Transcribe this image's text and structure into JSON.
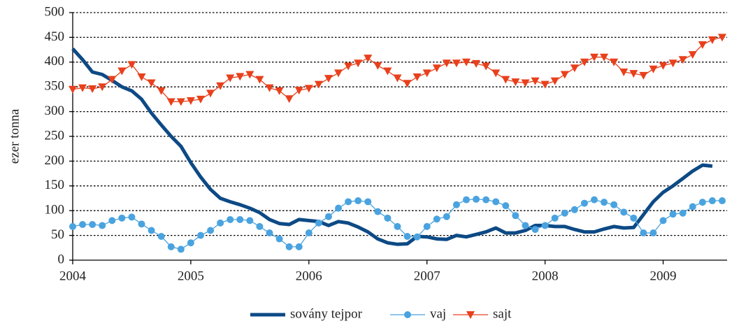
{
  "chart_data": {
    "type": "line",
    "y_label": "ezer tonna",
    "categories": [
      "2004",
      null,
      null,
      null,
      null,
      null,
      null,
      null,
      null,
      null,
      null,
      null,
      "2005",
      null,
      null,
      null,
      null,
      null,
      null,
      null,
      null,
      null,
      null,
      null,
      "2006",
      null,
      null,
      null,
      null,
      null,
      null,
      null,
      null,
      null,
      null,
      null,
      "2007",
      null,
      null,
      null,
      null,
      null,
      null,
      null,
      null,
      null,
      null,
      null,
      "2008",
      null,
      null,
      null,
      null,
      null,
      null,
      null,
      null,
      null,
      null,
      null,
      "2009",
      null,
      null,
      null,
      null,
      null,
      null
    ],
    "series": [
      {
        "name": "sovány tejpor",
        "color": "#0d4a85",
        "marker": "none",
        "values": [
          427,
          405,
          380,
          375,
          363,
          350,
          342,
          325,
          297,
          273,
          250,
          230,
          197,
          168,
          143,
          125,
          118,
          112,
          105,
          96,
          82,
          74,
          72,
          82,
          80,
          78,
          70,
          78,
          75,
          67,
          57,
          43,
          35,
          32,
          33,
          48,
          47,
          43,
          42,
          50,
          47,
          52,
          57,
          65,
          55,
          55,
          60,
          70,
          70,
          68,
          68,
          62,
          57,
          57,
          63,
          68,
          65,
          66,
          92,
          118,
          137,
          150,
          165,
          180,
          192,
          190,
          null
        ]
      },
      {
        "name": "vaj",
        "color": "#4aa3df",
        "marker": "circle",
        "values": [
          68,
          72,
          72,
          70,
          80,
          85,
          87,
          73,
          60,
          48,
          27,
          22,
          35,
          50,
          60,
          75,
          82,
          82,
          80,
          68,
          55,
          43,
          27,
          27,
          55,
          75,
          88,
          105,
          118,
          120,
          118,
          98,
          85,
          68,
          48,
          47,
          68,
          83,
          88,
          112,
          122,
          123,
          122,
          118,
          110,
          90,
          70,
          62,
          70,
          85,
          95,
          102,
          115,
          122,
          117,
          112,
          97,
          85,
          55,
          55,
          80,
          93,
          95,
          108,
          117,
          120,
          120
        ]
      },
      {
        "name": "sajt",
        "color": "#e8401c",
        "marker": "triangle-down",
        "values": [
          345,
          348,
          346,
          350,
          365,
          382,
          395,
          370,
          358,
          342,
          320,
          320,
          322,
          325,
          337,
          352,
          368,
          371,
          375,
          365,
          348,
          342,
          326,
          343,
          347,
          355,
          367,
          378,
          392,
          398,
          408,
          393,
          382,
          368,
          357,
          370,
          378,
          388,
          398,
          398,
          400,
          397,
          392,
          378,
          365,
          360,
          358,
          362,
          355,
          362,
          375,
          388,
          400,
          410,
          410,
          400,
          380,
          377,
          373,
          386,
          393,
          398,
          405,
          415,
          435,
          445,
          450
        ]
      }
    ],
    "ylim": [
      0,
      500
    ],
    "yticks": [
      0,
      50,
      100,
      150,
      200,
      250,
      300,
      350,
      400,
      450,
      500
    ],
    "grid": true,
    "legend": "bottom"
  }
}
